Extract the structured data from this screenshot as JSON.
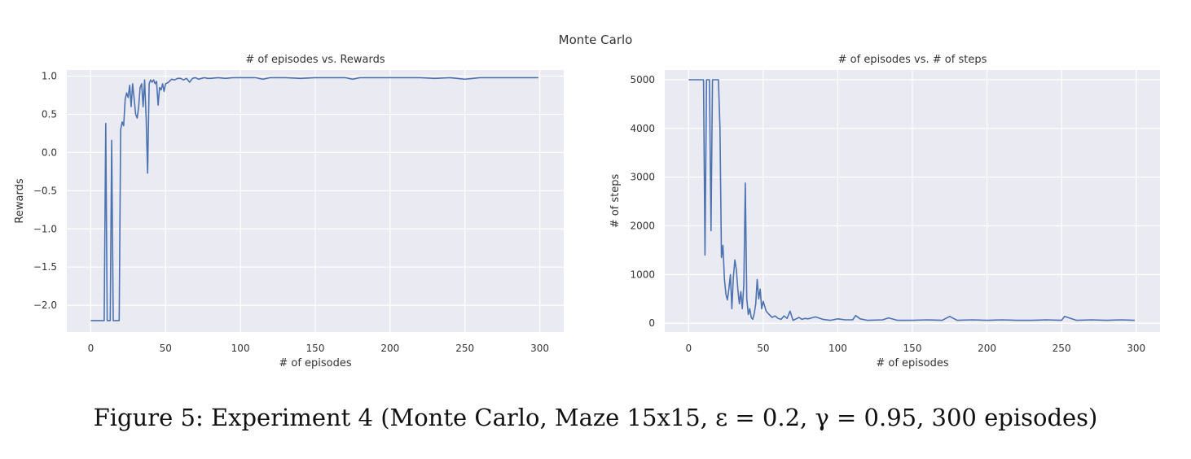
{
  "figure": {
    "suptitle": "Monte Carlo",
    "caption": "Figure 5: Experiment 4 (Monte Carlo, Maze 15x15, ε = 0.2, γ = 0.95, 300 episodes)"
  },
  "style": {
    "plot_bg": "#eaeaf2",
    "grid": "#ffffff",
    "line": "#4c72b0",
    "text": "#333333"
  },
  "chart_data": [
    {
      "type": "line",
      "title": "# of episodes vs. Rewards",
      "xlabel": "# of episodes",
      "ylabel": "Rewards",
      "xlim": [
        -16,
        316
      ],
      "ylim": [
        -2.35,
        1.08
      ],
      "xticks": [
        0,
        50,
        100,
        150,
        200,
        250,
        300
      ],
      "yticks": [
        1.0,
        0.5,
        0.0,
        -0.5,
        -1.0,
        -1.5,
        -2.0
      ],
      "ytick_labels": [
        "1.0",
        "0.5",
        "0.0",
        "−0.5",
        "−1.0",
        "−1.5",
        "−2.0"
      ],
      "grid": true,
      "series": [
        {
          "x": [
            0,
            9,
            10,
            11,
            12,
            13,
            14,
            15,
            16,
            17,
            18,
            19,
            20,
            21,
            22,
            23,
            24,
            25,
            26,
            27,
            28,
            29,
            30,
            31,
            32,
            33,
            34,
            35,
            36,
            37,
            38,
            39,
            40,
            41,
            42,
            43,
            44,
            45,
            46,
            47,
            48,
            49,
            50,
            52,
            54,
            56,
            58,
            60,
            62,
            64,
            66,
            68,
            70,
            72,
            74,
            76,
            78,
            80,
            85,
            90,
            95,
            100,
            105,
            110,
            115,
            120,
            130,
            140,
            150,
            160,
            170,
            175,
            180,
            190,
            200,
            210,
            220,
            230,
            240,
            250,
            260,
            270,
            280,
            290,
            299
          ],
          "y": [
            -2.2,
            -2.2,
            0.38,
            -2.2,
            -2.2,
            -2.2,
            0.16,
            -2.2,
            -2.2,
            -2.2,
            -2.2,
            -2.2,
            0.3,
            0.4,
            0.35,
            0.7,
            0.78,
            0.72,
            0.88,
            0.6,
            0.9,
            0.7,
            0.5,
            0.45,
            0.6,
            0.85,
            0.9,
            0.6,
            0.95,
            0.45,
            -0.27,
            0.9,
            0.95,
            0.92,
            0.95,
            0.9,
            0.93,
            0.62,
            0.85,
            0.82,
            0.9,
            0.8,
            0.9,
            0.92,
            0.96,
            0.95,
            0.97,
            0.97,
            0.95,
            0.97,
            0.92,
            0.97,
            0.98,
            0.96,
            0.97,
            0.98,
            0.97,
            0.97,
            0.98,
            0.97,
            0.98,
            0.98,
            0.98,
            0.98,
            0.96,
            0.98,
            0.98,
            0.97,
            0.98,
            0.98,
            0.98,
            0.96,
            0.98,
            0.98,
            0.98,
            0.98,
            0.98,
            0.97,
            0.98,
            0.96,
            0.98,
            0.98,
            0.98,
            0.98,
            0.98
          ]
        }
      ]
    },
    {
      "type": "line",
      "title": "# of episodes vs. # of steps",
      "xlabel": "# of episodes",
      "ylabel": "# of steps",
      "xlim": [
        -16,
        316
      ],
      "ylim": [
        -180,
        5200
      ],
      "xticks": [
        0,
        50,
        100,
        150,
        200,
        250,
        300
      ],
      "yticks": [
        0,
        1000,
        2000,
        3000,
        4000,
        5000
      ],
      "ytick_labels": [
        "0",
        "1000",
        "2000",
        "3000",
        "4000",
        "5000"
      ],
      "grid": true,
      "series": [
        {
          "x": [
            0,
            9,
            10,
            11,
            12,
            13,
            14,
            15,
            16,
            17,
            18,
            19,
            20,
            21,
            22,
            23,
            24,
            25,
            26,
            27,
            28,
            29,
            30,
            31,
            32,
            33,
            34,
            35,
            36,
            37,
            38,
            39,
            40,
            41,
            42,
            43,
            44,
            45,
            46,
            47,
            48,
            49,
            50,
            52,
            54,
            56,
            58,
            60,
            62,
            64,
            66,
            68,
            70,
            72,
            74,
            76,
            78,
            80,
            85,
            90,
            95,
            100,
            105,
            110,
            112,
            115,
            120,
            130,
            134,
            140,
            150,
            160,
            170,
            175,
            180,
            190,
            200,
            210,
            220,
            230,
            240,
            250,
            252,
            260,
            270,
            280,
            290,
            299
          ],
          "y": [
            5000,
            5000,
            5000,
            1400,
            5000,
            5000,
            5000,
            1900,
            5000,
            5000,
            5000,
            5000,
            5000,
            4000,
            1350,
            1600,
            900,
            600,
            480,
            700,
            1000,
            300,
            950,
            1300,
            1100,
            700,
            400,
            650,
            300,
            800,
            2880,
            500,
            180,
            300,
            120,
            80,
            200,
            400,
            900,
            500,
            700,
            300,
            450,
            250,
            180,
            120,
            150,
            100,
            80,
            150,
            100,
            250,
            60,
            90,
            120,
            80,
            100,
            90,
            130,
            80,
            60,
            90,
            70,
            70,
            160,
            90,
            60,
            70,
            110,
            60,
            60,
            70,
            60,
            140,
            60,
            70,
            60,
            70,
            60,
            60,
            70,
            60,
            140,
            60,
            70,
            60,
            70,
            60
          ]
        }
      ]
    }
  ]
}
